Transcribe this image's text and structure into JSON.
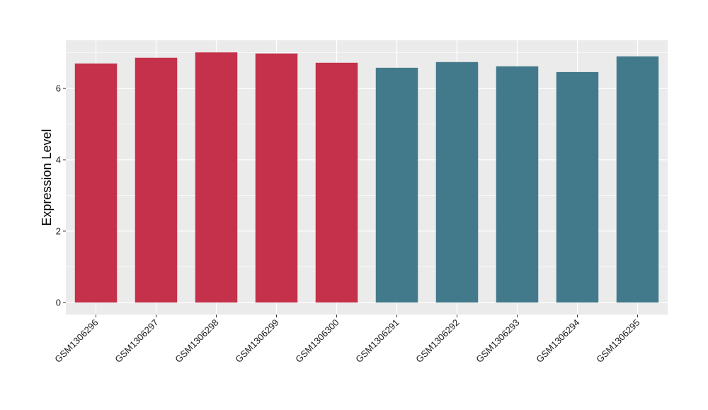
{
  "chart_data": {
    "type": "bar",
    "title": "",
    "xlabel": "",
    "ylabel": "Expression Level",
    "categories": [
      "GSM1306296",
      "GSM1306297",
      "GSM1306298",
      "GSM1306299",
      "GSM1306300",
      "GSM1306291",
      "GSM1306292",
      "GSM1306293",
      "GSM1306294",
      "GSM1306295"
    ],
    "values": [
      6.7,
      6.86,
      7.01,
      6.98,
      6.72,
      6.58,
      6.74,
      6.62,
      6.46,
      6.9
    ],
    "bar_colors": [
      "#c5304a",
      "#c5304a",
      "#c5304a",
      "#c5304a",
      "#c5304a",
      "#437a8b",
      "#437a8b",
      "#437a8b",
      "#437a8b",
      "#437a8b"
    ],
    "yticks": [
      0,
      2,
      4,
      6
    ],
    "ylim": [
      -0.34,
      7.35
    ],
    "grid": true,
    "panel_background": "#ebebeb",
    "grid_color": "#ffffff",
    "legend": "none"
  }
}
